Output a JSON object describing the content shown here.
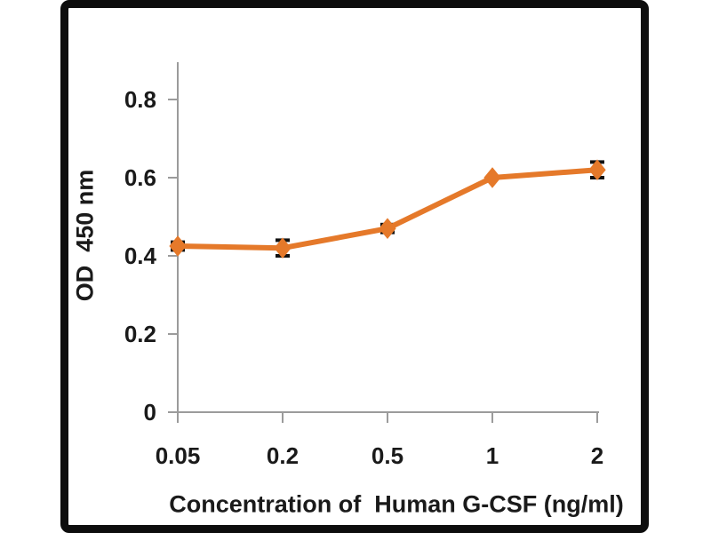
{
  "chart_data": {
    "type": "line",
    "title": "",
    "xlabel": "Concentration of  Human G-CSF (ng/ml)",
    "ylabel": "OD  450 nm",
    "x_scale": "categorical",
    "categories": [
      "0.05",
      "0.2",
      "0.5",
      "1",
      "2"
    ],
    "series": [
      {
        "color": "#E5792A",
        "marker": "diamond",
        "values": [
          0.425,
          0.42,
          0.47,
          0.6,
          0.62
        ],
        "errors": [
          0.01,
          0.02,
          0.01,
          0,
          0.02
        ]
      }
    ],
    "y_ticks": [
      0,
      0.2,
      0.4,
      0.6,
      0.8
    ],
    "y_tick_labels": [
      "0",
      "0.2",
      "0.4",
      "0.6",
      "0.8"
    ],
    "ylim": [
      0,
      0.9
    ],
    "grid": false,
    "legend": false,
    "colors": {
      "axis": "#9b9b9b",
      "error_bar": "#111111",
      "text": "#1a1a1a",
      "frame": "#0d0d0d",
      "background": "#ffffff"
    }
  }
}
